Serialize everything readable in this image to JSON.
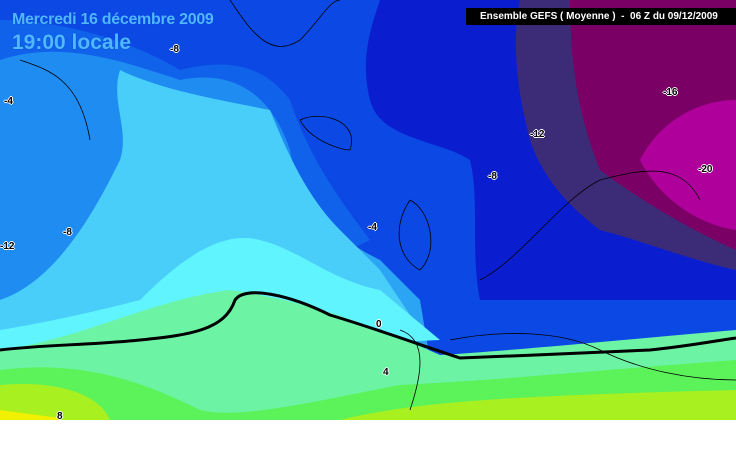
{
  "header": {
    "date": "Mercredi 16 décembre 2009",
    "time": "19:00 locale",
    "model_info": "Ensemble GEFS ( Moyenne )  -  06 Z du 09/12/2009"
  },
  "contour_labels": [
    "-8",
    "-4",
    "-12",
    "-16",
    "-20",
    "-8",
    "-4",
    "-8",
    "-12",
    "0",
    "4",
    "8"
  ],
  "colors": {
    "band_minus20": "#b0009c",
    "band_minus16": "#7a0066",
    "band_minus12": "#3c2c78",
    "band_minus10": "#0a1ed0",
    "band_minus8": "#0c48e4",
    "band_minus6": "#1478ee",
    "band_minus4": "#2ca4f4",
    "band_minus2": "#48cef8",
    "band_0": "#60f4ff",
    "band_2": "#6cf4a4",
    "band_4": "#5cf25a",
    "band_6": "#a8f020",
    "band_8": "#f0f000"
  }
}
